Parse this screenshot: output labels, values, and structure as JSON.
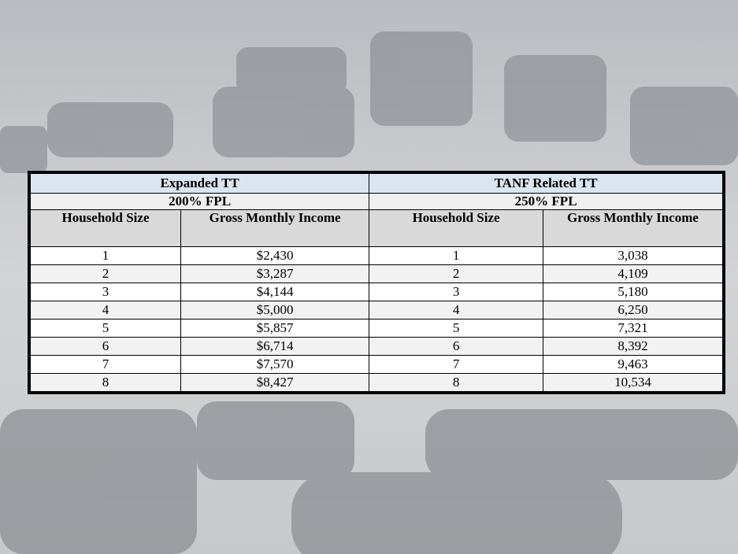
{
  "table": {
    "groups": [
      {
        "title": "Expanded TT",
        "subtitle": "200% FPL",
        "columns": [
          "Household Size",
          "Gross Monthly Income"
        ],
        "rows": [
          [
            "1",
            "$2,430"
          ],
          [
            "2",
            "$3,287"
          ],
          [
            "3",
            "$4,144"
          ],
          [
            "4",
            "$5,000"
          ],
          [
            "5",
            "$5,857"
          ],
          [
            "6",
            "$6,714"
          ],
          [
            "7",
            "$7,570"
          ],
          [
            "8",
            "$8,427"
          ]
        ]
      },
      {
        "title": "TANF Related TT",
        "subtitle": "250% FPL",
        "columns": [
          "Household Size",
          "Gross Monthly Income"
        ],
        "rows": [
          [
            "1",
            "3,038"
          ],
          [
            "2",
            "4,109"
          ],
          [
            "3",
            "5,180"
          ],
          [
            "4",
            "6,250"
          ],
          [
            "5",
            "7,321"
          ],
          [
            "6",
            "8,392"
          ],
          [
            "7",
            "9,463"
          ],
          [
            "8",
            "10,534"
          ]
        ]
      }
    ]
  }
}
